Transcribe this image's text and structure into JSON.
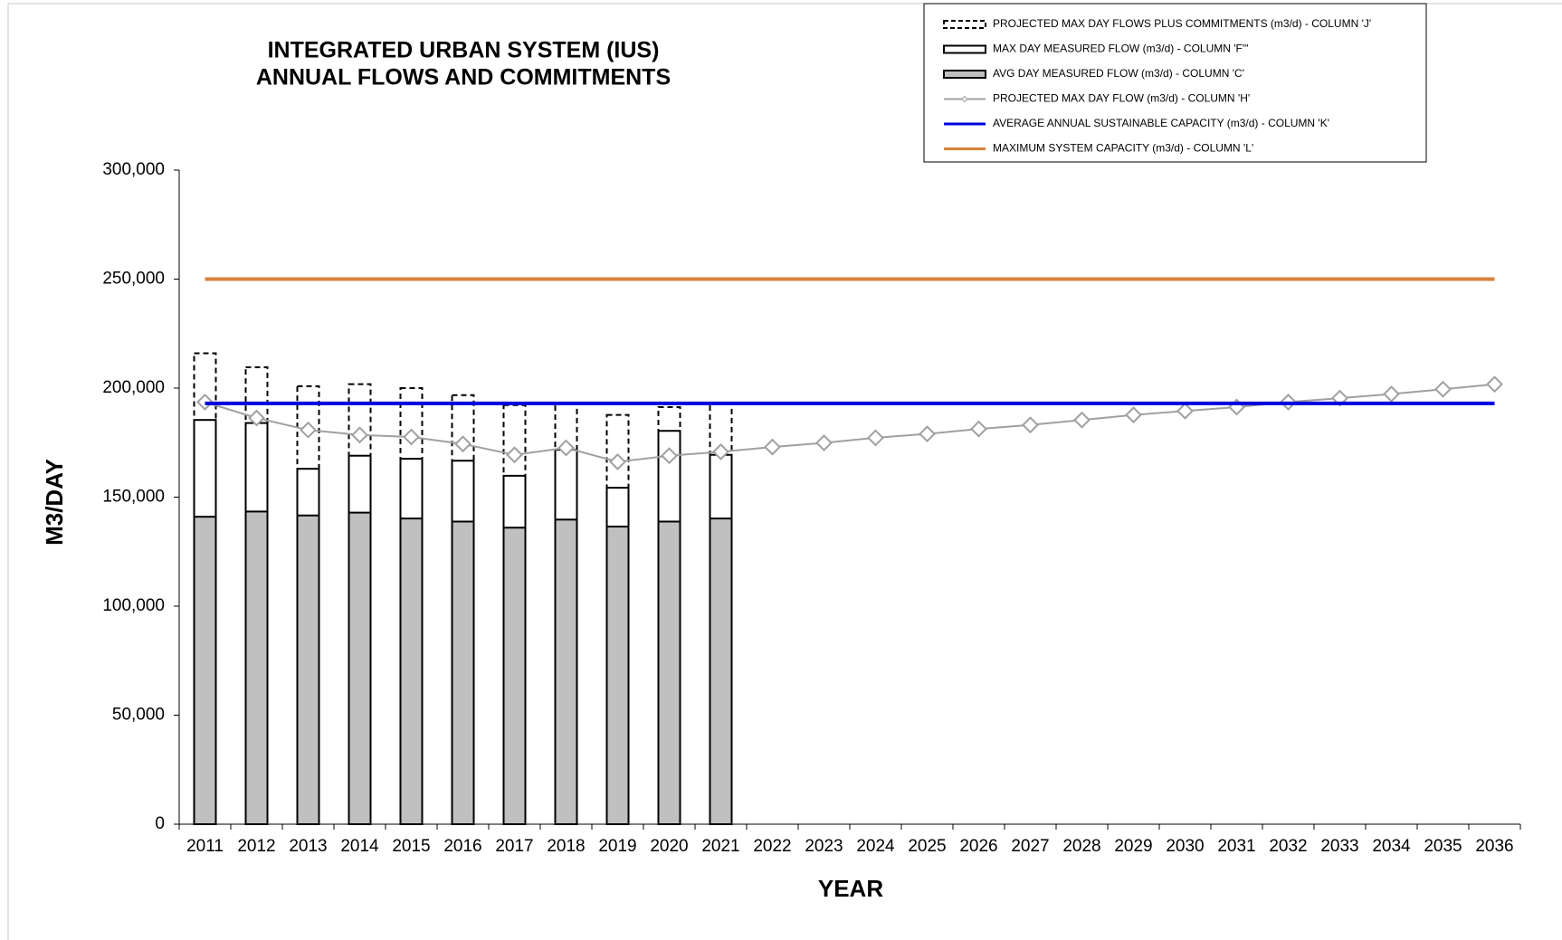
{
  "chart_data": {
    "type": "bar-line",
    "title": [
      "INTEGRATED URBAN SYSTEM (IUS)",
      "ANNUAL FLOWS AND COMMITMENTS"
    ],
    "x_label": "YEAR",
    "y_label": "M3/DAY",
    "categories": [
      "2011",
      "2012",
      "2013",
      "2014",
      "2015",
      "2016",
      "2017",
      "2018",
      "2019",
      "2020",
      "2021",
      "2022",
      "2023",
      "2024",
      "2025",
      "2026",
      "2027",
      "2028",
      "2029",
      "2030",
      "2031",
      "2032",
      "2033",
      "2034",
      "2035",
      "2036"
    ],
    "ylim": [
      0,
      300000
    ],
    "yticks": [
      0,
      {
        "value": 50000,
        "label": "50,000"
      },
      {
        "value": 100000,
        "label": "100,000"
      },
      {
        "value": 150000,
        "label": "150,000"
      },
      {
        "value": 200000,
        "label": "200,000"
      },
      {
        "value": 250000,
        "label": "250,000"
      },
      {
        "value": 300000,
        "label": "300,000"
      }
    ],
    "grid": false,
    "legend": "top-right",
    "series": [
      {
        "name": "PROJECTED MAX DAY FLOWS PLUS COMMITMENTS (m3/d) - COLUMN 'J'",
        "mark": "bar",
        "color": "#000000",
        "fill": "#ffffff",
        "dash": true,
        "values": [
          216000,
          209600,
          200900,
          201800,
          200000,
          196800,
          192200,
          193000,
          187700,
          191300,
          193000,
          null,
          null,
          null,
          null,
          null,
          null,
          null,
          null,
          null,
          null,
          null,
          null,
          null,
          null,
          null
        ]
      },
      {
        "name": "MAX DAY MEASURED FLOW (m3/d) - COLUMN 'F'\"",
        "mark": "bar",
        "color": "#000000",
        "fill": "#ffffff",
        "dash": false,
        "values": [
          185400,
          184000,
          163000,
          169000,
          167600,
          166700,
          159800,
          171700,
          154300,
          180400,
          169400,
          null,
          null,
          null,
          null,
          null,
          null,
          null,
          null,
          null,
          null,
          null,
          null,
          null,
          null,
          null
        ]
      },
      {
        "name": "AVG DAY MEASURED FLOW (m3/d) - COLUMN 'C'",
        "mark": "bar",
        "color": "#000000",
        "fill": "#c0c0c0",
        "dash": false,
        "values": [
          141000,
          143400,
          141600,
          142900,
          140200,
          138800,
          136000,
          139700,
          136500,
          138800,
          140200,
          null,
          null,
          null,
          null,
          null,
          null,
          null,
          null,
          null,
          null,
          null,
          null,
          null,
          null,
          null
        ]
      },
      {
        "name": "PROJECTED MAX DAY FLOW (m3/d) - COLUMN 'H'",
        "mark": "line",
        "color": "#a0a0a0",
        "marker": "diamond",
        "values": [
          193600,
          186300,
          180800,
          178500,
          177600,
          174400,
          169400,
          172600,
          166200,
          169000,
          170800,
          173000,
          174900,
          177200,
          179000,
          181300,
          183100,
          185400,
          187700,
          189500,
          191300,
          193600,
          195400,
          197300,
          199500,
          201800
        ]
      },
      {
        "name": "AVERAGE ANNUAL SUSTAINABLE CAPACITY (m3/d) - COLUMN 'K'",
        "mark": "line",
        "color": "#0000dd",
        "values": [
          193000,
          193000,
          193000,
          193000,
          193000,
          193000,
          193000,
          193000,
          193000,
          193000,
          193000,
          193000,
          193000,
          193000,
          193000,
          193000,
          193000,
          193000,
          193000,
          193000,
          193000,
          193000,
          193000,
          193000,
          193000,
          193000
        ]
      },
      {
        "name": "MAXIMUM SYSTEM CAPACITY (m3/d) - COLUMN 'L'",
        "mark": "line",
        "color": "#d9823b",
        "values": [
          250000,
          250000,
          250000,
          250000,
          250000,
          250000,
          250000,
          250000,
          250000,
          250000,
          250000,
          250000,
          250000,
          250000,
          250000,
          250000,
          250000,
          250000,
          250000,
          250000,
          250000,
          250000,
          250000,
          250000,
          250000,
          250000
        ]
      }
    ]
  }
}
